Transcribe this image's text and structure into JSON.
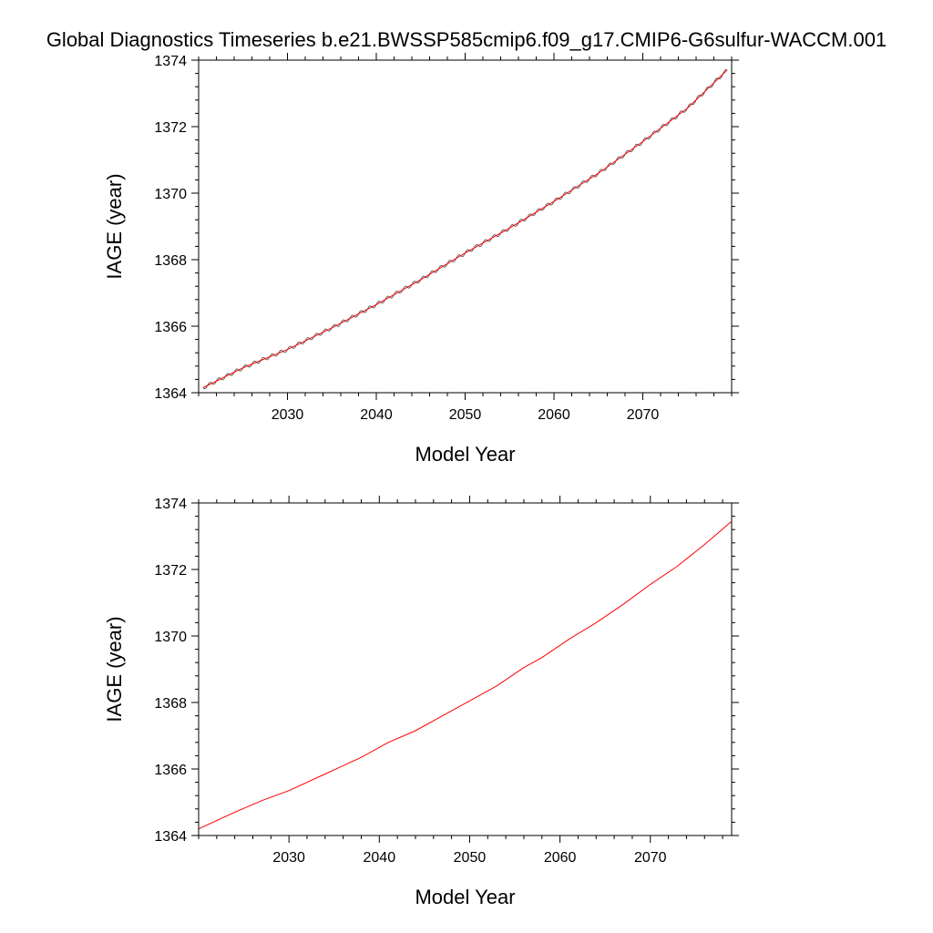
{
  "title": "Global Diagnostics Timeseries b.e21.BWSSP585cmip6.f09_g17.CMIP6-G6sulfur-WACCM.001",
  "colors": {
    "monthly": "#555555",
    "annual": "#ff0000",
    "axis": "#000000"
  },
  "chart_data": [
    {
      "type": "line",
      "xlabel": "Model Year",
      "ylabel": "IAGE (year)",
      "xlim": [
        2020,
        2080
      ],
      "ylim": [
        1364,
        1374
      ],
      "xticks": [
        2030,
        2040,
        2050,
        2060,
        2070
      ],
      "yticks": [
        1364,
        1366,
        1368,
        1370,
        1372,
        1374
      ],
      "grid": false,
      "series": [
        {
          "style": "monthly",
          "color": "#555555",
          "x": [
            2020.5,
            2025,
            2030,
            2035,
            2040,
            2045,
            2050,
            2055,
            2060,
            2065,
            2070,
            2075,
            2079.5
          ],
          "y": [
            1364.15,
            1364.75,
            1365.3,
            1365.95,
            1366.65,
            1367.4,
            1368.2,
            1368.95,
            1369.75,
            1370.6,
            1371.55,
            1372.55,
            1373.7
          ],
          "seasonal_amplitude": 0.06
        },
        {
          "style": "annual",
          "color": "#ff0000",
          "x": [
            2020.5,
            2025,
            2030,
            2035,
            2040,
            2045,
            2050,
            2055,
            2060,
            2065,
            2070,
            2075,
            2079.5
          ],
          "y": [
            1364.15,
            1364.75,
            1365.3,
            1365.95,
            1366.65,
            1367.4,
            1368.2,
            1368.95,
            1369.75,
            1370.6,
            1371.55,
            1372.55,
            1373.7
          ]
        }
      ]
    },
    {
      "type": "line",
      "xlabel": "Model Year",
      "ylabel": "IAGE (year)",
      "xlim": [
        2020,
        2079
      ],
      "ylim": [
        1364,
        1374
      ],
      "xticks": [
        2030,
        2040,
        2050,
        2060,
        2070
      ],
      "yticks": [
        1364,
        1366,
        1368,
        1370,
        1372,
        1374
      ],
      "grid": false,
      "series": [
        {
          "style": "annual",
          "color": "#ff0000",
          "x": [
            2020,
            2024,
            2027,
            2030,
            2034,
            2038,
            2041,
            2044,
            2047,
            2050,
            2053,
            2056,
            2058,
            2061,
            2064,
            2067,
            2070,
            2073,
            2076,
            2079
          ],
          "y": [
            1364.2,
            1364.7,
            1365.05,
            1365.35,
            1365.85,
            1366.35,
            1366.8,
            1367.15,
            1367.6,
            1368.05,
            1368.5,
            1369.05,
            1369.35,
            1369.9,
            1370.4,
            1370.95,
            1371.55,
            1372.1,
            1372.75,
            1373.45
          ]
        }
      ]
    }
  ]
}
